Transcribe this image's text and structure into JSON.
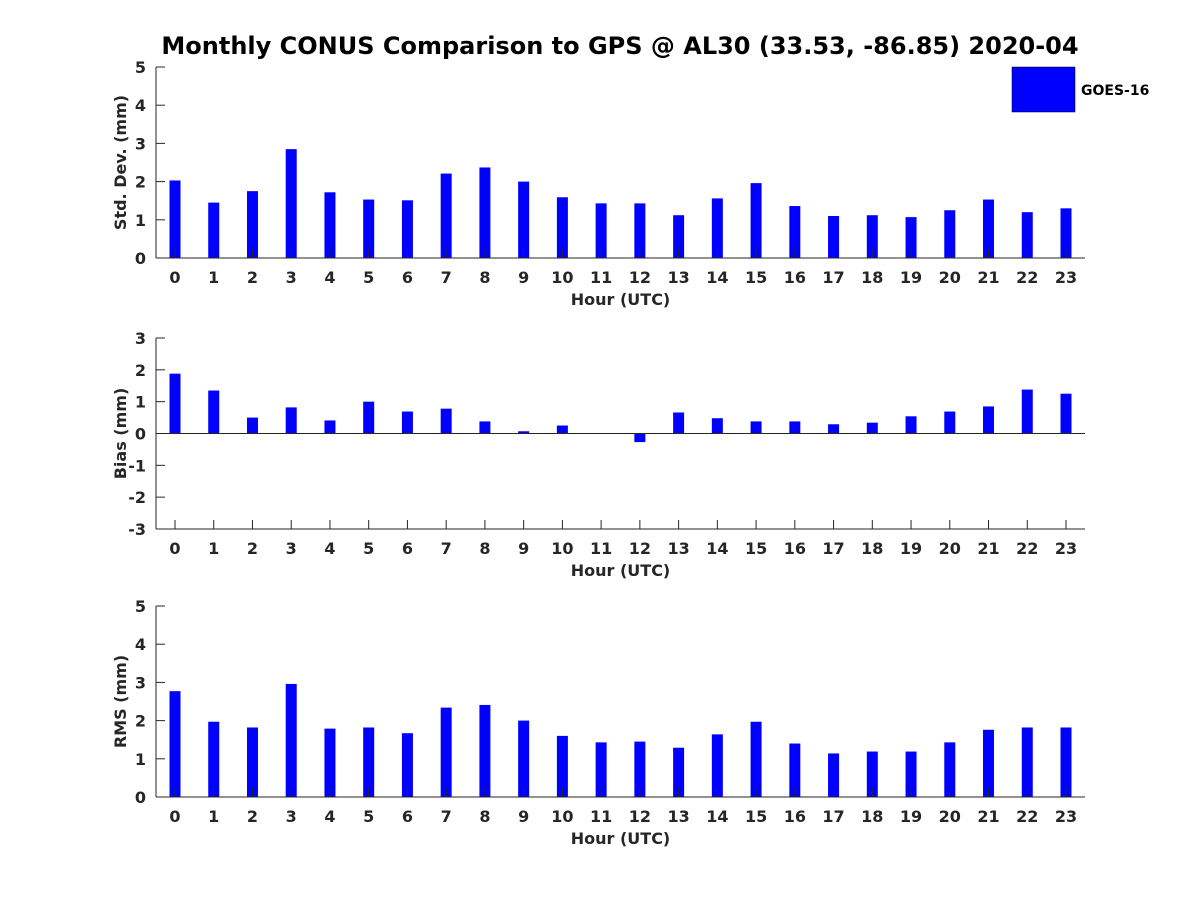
{
  "title": "Monthly CONUS Comparison to GPS @ AL30 (33.53, -86.85) 2020-04",
  "legend": {
    "label": "GOES-16",
    "color": "#0000ff"
  },
  "chart_data": [
    {
      "type": "bar",
      "series_name": "GOES-16",
      "color": "#0000ff",
      "xlabel": "Hour (UTC)",
      "ylabel": "Std. Dev. (mm)",
      "ylim": [
        0,
        5
      ],
      "yticks": [
        0,
        1,
        2,
        3,
        4,
        5
      ],
      "categories": [
        "0",
        "1",
        "2",
        "3",
        "4",
        "5",
        "6",
        "7",
        "8",
        "9",
        "10",
        "11",
        "12",
        "13",
        "14",
        "15",
        "16",
        "17",
        "18",
        "19",
        "20",
        "21",
        "22",
        "23"
      ],
      "values": [
        2.03,
        1.45,
        1.75,
        2.85,
        1.72,
        1.53,
        1.51,
        2.21,
        2.37,
        2.0,
        1.59,
        1.43,
        1.43,
        1.12,
        1.56,
        1.96,
        1.36,
        1.1,
        1.12,
        1.07,
        1.25,
        1.53,
        1.2,
        1.3
      ]
    },
    {
      "type": "bar",
      "series_name": "GOES-16",
      "color": "#0000ff",
      "xlabel": "Hour (UTC)",
      "ylabel": "Bias (mm)",
      "ylim": [
        -3,
        3
      ],
      "yticks": [
        -3,
        -2,
        -1,
        0,
        1,
        2,
        3
      ],
      "zero_line": true,
      "categories": [
        "0",
        "1",
        "2",
        "3",
        "4",
        "5",
        "6",
        "7",
        "8",
        "9",
        "10",
        "11",
        "12",
        "13",
        "14",
        "15",
        "16",
        "17",
        "18",
        "19",
        "20",
        "21",
        "22",
        "23"
      ],
      "values": [
        1.88,
        1.35,
        0.5,
        0.82,
        0.41,
        1.0,
        0.69,
        0.78,
        0.38,
        0.07,
        0.25,
        0.0,
        -0.27,
        0.66,
        0.48,
        0.38,
        0.38,
        0.29,
        0.34,
        0.54,
        0.69,
        0.85,
        1.38,
        1.25
      ]
    },
    {
      "type": "bar",
      "series_name": "GOES-16",
      "color": "#0000ff",
      "xlabel": "Hour (UTC)",
      "ylabel": "RMS (mm)",
      "ylim": [
        0,
        5
      ],
      "yticks": [
        0,
        1,
        2,
        3,
        4,
        5
      ],
      "categories": [
        "0",
        "1",
        "2",
        "3",
        "4",
        "5",
        "6",
        "7",
        "8",
        "9",
        "10",
        "11",
        "12",
        "13",
        "14",
        "15",
        "16",
        "17",
        "18",
        "19",
        "20",
        "21",
        "22",
        "23"
      ],
      "values": [
        2.77,
        1.97,
        1.82,
        2.96,
        1.79,
        1.82,
        1.67,
        2.34,
        2.41,
        2.0,
        1.6,
        1.43,
        1.45,
        1.29,
        1.64,
        1.97,
        1.4,
        1.14,
        1.19,
        1.19,
        1.43,
        1.76,
        1.82,
        1.82
      ]
    }
  ]
}
